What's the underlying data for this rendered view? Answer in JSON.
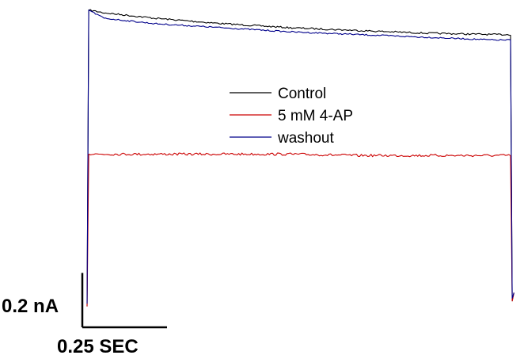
{
  "chart_data": {
    "type": "line",
    "title": "",
    "xlabel": "",
    "ylabel": "",
    "grid": false,
    "axes_visible": false,
    "legend_position": "center",
    "x_units": "s",
    "y_units": "nA",
    "series": [
      {
        "name": "Control",
        "color": "#000000",
        "x": [
          0.0,
          0.005,
          0.05,
          0.2,
          0.4,
          0.6,
          0.8,
          1.0,
          1.2,
          1.25,
          1.255,
          1.26
        ],
        "y": [
          -0.06,
          1.03,
          1.02,
          1.0,
          0.98,
          0.965,
          0.955,
          0.945,
          0.94,
          0.94,
          -0.04,
          -0.01
        ]
      },
      {
        "name": "5 mM 4-AP",
        "color": "#cc0000",
        "x": [
          0.0,
          0.005,
          0.05,
          0.2,
          0.4,
          0.6,
          0.8,
          1.0,
          1.2,
          1.25,
          1.255,
          1.26
        ],
        "y": [
          -0.06,
          0.5,
          0.5,
          0.5,
          0.5,
          0.5,
          0.495,
          0.495,
          0.495,
          0.495,
          -0.04,
          -0.01
        ]
      },
      {
        "name": "washout",
        "color": "#00008b",
        "x": [
          0.0,
          0.005,
          0.05,
          0.2,
          0.4,
          0.6,
          0.8,
          1.0,
          1.2,
          1.25,
          1.255,
          1.26
        ],
        "y": [
          -0.05,
          1.03,
          1.0,
          0.98,
          0.965,
          0.95,
          0.94,
          0.93,
          0.92,
          0.92,
          -0.03,
          -0.01
        ]
      }
    ],
    "scale_bars": {
      "y_value": 0.2,
      "y_label": "0.2 nA",
      "x_value": 0.25,
      "x_label": "0.25 SEC"
    }
  }
}
